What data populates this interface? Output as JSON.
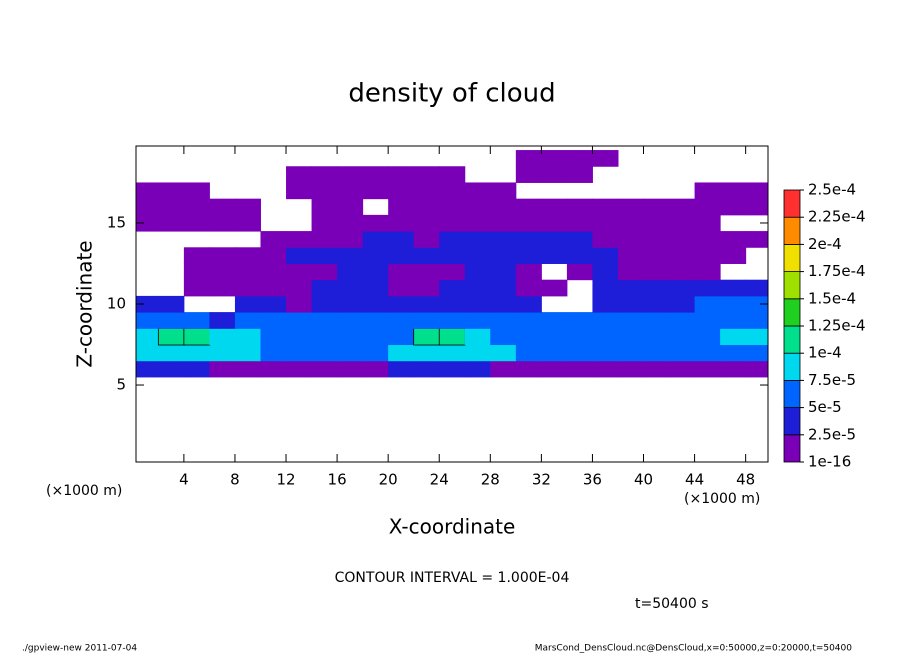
{
  "chart_data": {
    "type": "heatmap",
    "title": "density of cloud",
    "x_label": "X-coordinate",
    "y_label": "Z-coordinate",
    "x_units": "(×1000 m)",
    "annotation": "CONTOUR INTERVAL = 1.000E-04",
    "time_label": "t=50400 s",
    "footer_left": "./gpview-new  2011-07-04",
    "footer_right": "MarsCond_DensCloud.nc@DensCloud,x=0:50000,z=0:20000,t=50400",
    "xlim": [
      0.25,
      49.75
    ],
    "ylim": [
      0.25,
      19.75
    ],
    "xticks": [
      4,
      8,
      12,
      16,
      20,
      24,
      28,
      32,
      36,
      40,
      44,
      48
    ],
    "yticks": [
      5,
      10,
      15
    ],
    "contour_interval": 0.0001,
    "x": [
      1,
      3,
      5,
      7,
      9,
      11,
      13,
      15,
      17,
      19,
      21,
      23,
      25,
      27,
      29,
      31,
      33,
      35,
      37,
      39,
      41,
      43,
      45,
      47,
      49
    ],
    "z": [
      1,
      2,
      3,
      4,
      5,
      6,
      7,
      8,
      9,
      10,
      11,
      12,
      13,
      14,
      15,
      16,
      17,
      18,
      19
    ],
    "values": [
      [
        0,
        0,
        0,
        0,
        0,
        0,
        0,
        0,
        0,
        0,
        0,
        0,
        0,
        0,
        0,
        0,
        0,
        0,
        0,
        0,
        0,
        0,
        0,
        0,
        0
      ],
      [
        0,
        0,
        0,
        0,
        0,
        0,
        0,
        0,
        0,
        0,
        0,
        0,
        0,
        0,
        0,
        0,
        0,
        0,
        0,
        0,
        0,
        0,
        0,
        0,
        0
      ],
      [
        0,
        0,
        0,
        0,
        0,
        0,
        0,
        0,
        0,
        0,
        0,
        0,
        0,
        0,
        0,
        0,
        0,
        0,
        0,
        0,
        0,
        0,
        0,
        0,
        0
      ],
      [
        0,
        0,
        0,
        0,
        0,
        0,
        0,
        0,
        0,
        0,
        0,
        0,
        0,
        0,
        0,
        0,
        0,
        0,
        0,
        0,
        0,
        0,
        0,
        0,
        0
      ],
      [
        0,
        0,
        0,
        0,
        0,
        0,
        0,
        0,
        0,
        0,
        0,
        0,
        0,
        0,
        0,
        0,
        0,
        0,
        0,
        0,
        0,
        0,
        0,
        0,
        0
      ],
      [
        3e-05,
        3e-05,
        3e-05,
        2e-05,
        2e-05,
        2e-05,
        2e-05,
        2e-05,
        2e-05,
        2e-05,
        3e-05,
        3e-05,
        3e-05,
        3e-05,
        2e-05,
        2e-05,
        2e-05,
        2e-05,
        2e-05,
        2e-05,
        2e-05,
        2e-05,
        2e-05,
        2e-05,
        2e-05
      ],
      [
        8e-05,
        8e-05,
        8e-05,
        8e-05,
        8e-05,
        6e-05,
        6e-05,
        6e-05,
        6e-05,
        6e-05,
        8e-05,
        8e-05,
        8e-05,
        8e-05,
        8e-05,
        6e-05,
        6e-05,
        6e-05,
        6e-05,
        6e-05,
        6e-05,
        6e-05,
        6e-05,
        6e-05,
        6e-05
      ],
      [
        8e-05,
        0.000105,
        0.000105,
        8e-05,
        8e-05,
        6e-05,
        6e-05,
        6e-05,
        6e-05,
        6e-05,
        6e-05,
        0.000105,
        0.000105,
        8e-05,
        6e-05,
        6e-05,
        6e-05,
        6e-05,
        6e-05,
        6e-05,
        6e-05,
        6e-05,
        6e-05,
        8e-05,
        8e-05
      ],
      [
        6e-05,
        5e-05,
        5e-05,
        4e-05,
        5e-05,
        6e-05,
        5e-05,
        5e-05,
        6e-05,
        6e-05,
        5e-05,
        5e-05,
        5e-05,
        5e-05,
        5e-05,
        6e-05,
        5e-05,
        5e-05,
        5e-05,
        6e-05,
        6e-05,
        6e-05,
        6e-05,
        6e-05,
        6e-05
      ],
      [
        4e-05,
        4e-05,
        0,
        0,
        3e-05,
        3e-05,
        2e-05,
        3e-05,
        3e-05,
        3e-05,
        3e-05,
        3e-05,
        4e-05,
        3e-05,
        3e-05,
        3e-05,
        0,
        0,
        3e-05,
        4e-05,
        4e-05,
        4e-05,
        5e-05,
        5e-05,
        5e-05
      ],
      [
        0,
        0,
        2e-05,
        2e-05,
        2e-05,
        2e-05,
        2e-05,
        3e-05,
        3e-05,
        3e-05,
        2e-05,
        2e-05,
        3e-05,
        3e-05,
        3e-05,
        2e-05,
        2e-05,
        0,
        3e-05,
        3e-05,
        3e-05,
        3e-05,
        3e-05,
        3e-05,
        3e-05
      ],
      [
        0,
        0,
        1e-05,
        1e-05,
        1e-05,
        2e-05,
        2e-05,
        2e-05,
        3e-05,
        3e-05,
        2e-05,
        2e-05,
        2e-05,
        3e-05,
        3e-05,
        2e-05,
        0,
        2e-05,
        3e-05,
        2e-05,
        1e-05,
        1e-05,
        1e-05,
        0,
        0
      ],
      [
        0,
        0,
        1e-05,
        1e-05,
        1e-05,
        1e-05,
        3e-05,
        3e-05,
        3e-05,
        3e-05,
        3e-05,
        3e-05,
        3e-05,
        3e-05,
        3e-05,
        3e-05,
        3e-05,
        3e-05,
        3e-05,
        2e-05,
        2e-05,
        2e-05,
        1e-05,
        1e-05,
        0
      ],
      [
        0,
        0,
        0,
        0,
        0,
        2e-05,
        2e-05,
        2e-05,
        2e-05,
        3e-05,
        3e-05,
        2e-05,
        3e-05,
        3e-05,
        3e-05,
        3e-05,
        3e-05,
        3e-05,
        2e-05,
        2e-05,
        2e-05,
        1e-05,
        1e-05,
        1e-05,
        1e-05
      ],
      [
        1e-05,
        1e-05,
        1e-05,
        1e-05,
        1e-05,
        0,
        0,
        1e-05,
        1e-05,
        1e-05,
        1e-05,
        2e-05,
        2e-05,
        2e-05,
        2e-05,
        2e-05,
        2e-05,
        2e-05,
        2e-05,
        1e-05,
        1e-05,
        1e-05,
        1e-05,
        0,
        0
      ],
      [
        2e-05,
        2e-05,
        2e-05,
        2e-05,
        1e-05,
        0,
        0,
        1e-05,
        1e-05,
        0,
        1e-05,
        1e-05,
        1e-05,
        1e-05,
        2e-05,
        2e-05,
        2e-05,
        2e-05,
        2e-05,
        2e-05,
        1e-05,
        1e-05,
        1e-05,
        1e-05,
        1e-05
      ],
      [
        1e-05,
        1e-05,
        1e-05,
        0,
        0,
        0,
        1e-05,
        1e-05,
        1e-05,
        1e-05,
        1e-05,
        1e-05,
        1e-05,
        1e-05,
        1e-05,
        0,
        0,
        0,
        0,
        0,
        0,
        0,
        1e-05,
        1e-05,
        1e-05
      ],
      [
        0,
        0,
        0,
        0,
        0,
        0,
        1e-05,
        1e-05,
        1e-05,
        1e-05,
        1e-05,
        1e-05,
        1e-05,
        0,
        0,
        1e-05,
        1e-05,
        1e-05,
        0,
        0,
        0,
        0,
        0,
        0,
        0
      ],
      [
        0,
        0,
        0,
        0,
        0,
        0,
        0,
        0,
        0,
        0,
        0,
        0,
        0,
        0,
        0,
        1e-05,
        1e-05,
        1e-05,
        1e-05,
        0,
        0,
        0,
        0,
        0,
        0
      ]
    ],
    "colorbar": {
      "ticks": [
        {
          "value": 1e-16,
          "label": "1e-16"
        },
        {
          "value": 2.5e-05,
          "label": "2.5e-5"
        },
        {
          "value": 5e-05,
          "label": "5e-5"
        },
        {
          "value": 7.5e-05,
          "label": "7.5e-5"
        },
        {
          "value": 0.0001,
          "label": "1e-4"
        },
        {
          "value": 0.000125,
          "label": "1.25e-4"
        },
        {
          "value": 0.00015,
          "label": "1.5e-4"
        },
        {
          "value": 0.000175,
          "label": "1.75e-4"
        },
        {
          "value": 0.0002,
          "label": "2e-4"
        },
        {
          "value": 0.000225,
          "label": "2.25e-4"
        },
        {
          "value": 0.00025,
          "label": "2.5e-4"
        }
      ],
      "colors": [
        "#7a00b8",
        "#1e1ed8",
        "#0064ff",
        "#00d8f0",
        "#00e08c",
        "#20d020",
        "#a0e000",
        "#f0e000",
        "#ff8c00",
        "#ff3030"
      ]
    }
  }
}
